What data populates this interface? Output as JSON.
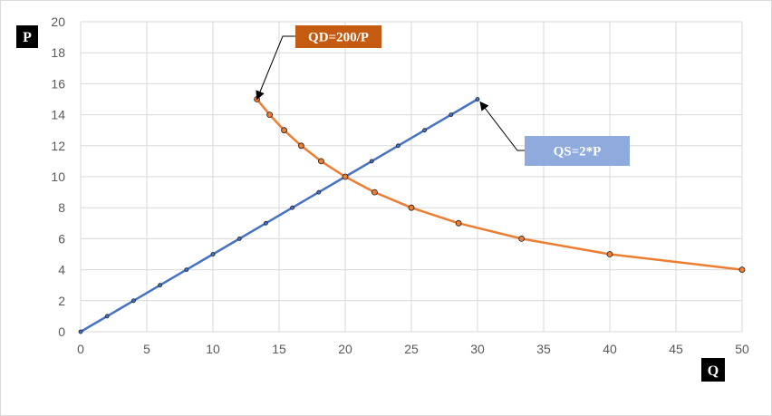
{
  "chart_data": {
    "type": "line",
    "x_axis_tag": "Q",
    "y_axis_tag": "P",
    "xlim": [
      0,
      50
    ],
    "ylim": [
      0,
      20
    ],
    "x_ticks": [
      0,
      5,
      10,
      15,
      20,
      25,
      30,
      35,
      40,
      45,
      50
    ],
    "y_ticks": [
      0,
      2,
      4,
      6,
      8,
      10,
      12,
      14,
      16,
      18,
      20
    ],
    "grid": true,
    "series": [
      {
        "name": "QS=2*P",
        "color": "#4472c4",
        "points": [
          [
            0,
            0
          ],
          [
            2,
            1
          ],
          [
            4,
            2
          ],
          [
            6,
            3
          ],
          [
            8,
            4
          ],
          [
            10,
            5
          ],
          [
            12,
            6
          ],
          [
            14,
            7
          ],
          [
            16,
            8
          ],
          [
            18,
            9
          ],
          [
            20,
            10
          ],
          [
            22,
            11
          ],
          [
            24,
            12
          ],
          [
            26,
            13
          ],
          [
            28,
            14
          ],
          [
            30,
            15
          ]
        ]
      },
      {
        "name": "QD=200/P",
        "color": "#ed7d31",
        "points": [
          [
            13.33,
            15
          ],
          [
            14.29,
            14
          ],
          [
            15.38,
            13
          ],
          [
            16.67,
            12
          ],
          [
            18.18,
            11
          ],
          [
            20,
            10
          ],
          [
            22.22,
            9
          ],
          [
            25,
            8
          ],
          [
            28.57,
            7
          ],
          [
            33.33,
            6
          ],
          [
            40,
            5
          ],
          [
            50,
            4
          ]
        ]
      }
    ],
    "annotations": [
      {
        "text": "QD=200/P",
        "bg": "#c55a11",
        "points_to": [
          13.33,
          15
        ]
      },
      {
        "text": "QS=2*P",
        "bg": "#8faadc",
        "points_to": [
          30,
          15
        ]
      }
    ]
  }
}
